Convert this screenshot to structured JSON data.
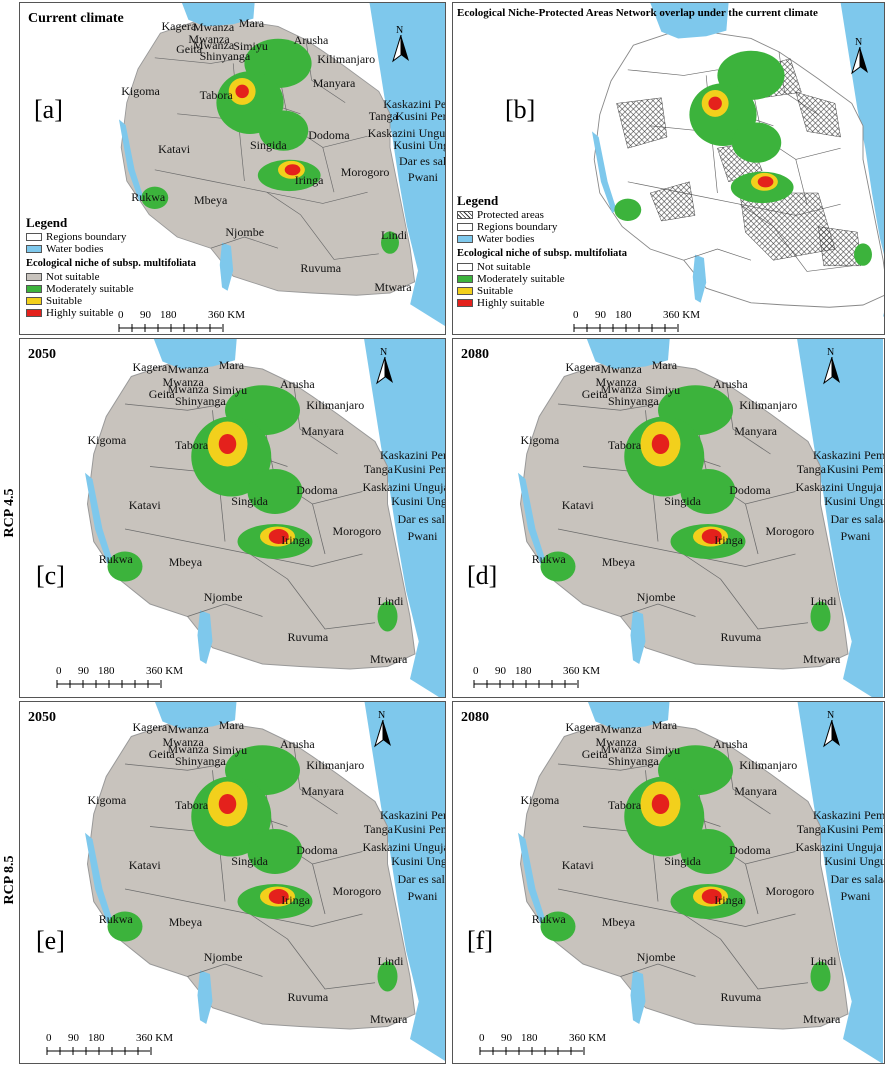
{
  "panels": {
    "a": {
      "title": "Current climate",
      "letter": "[a]"
    },
    "b": {
      "title": "Ecological Niche-Protected Areas Network overlap under the current climate",
      "letter": "[b]"
    },
    "c": {
      "title": "2050",
      "letter": "[c]"
    },
    "d": {
      "title": "2080",
      "letter": "[d]"
    },
    "e": {
      "title": "2050",
      "letter": "[e]"
    },
    "f": {
      "title": "2080",
      "letter": "[f]"
    }
  },
  "side_labels": {
    "rcp45": "RCP 4.5",
    "rcp85": "RCP 8.5"
  },
  "north_label": "N",
  "regions": {
    "kagera": "Kagera",
    "mwanza1": "Mwanza",
    "mwanza2": "Mwanza",
    "mwanza3": "Mwanza",
    "mara": "Mara",
    "geita": "Geita",
    "simiyu": "Simiyu",
    "shinyanga": "Shinyanga",
    "arusha": "Arusha",
    "kilimanjaro": "Kilimanjaro",
    "manyara": "Manyara",
    "kigoma": "Kigoma",
    "tabora": "Tabora",
    "kask_pemba": "Kaskazini Pemba",
    "tanga": "Tanga",
    "kusini_pemba": "Kusini Pemba",
    "dodoma": "Dodoma",
    "kask_unguja": "Kaskazini Unguja",
    "singida": "Singida",
    "kusini_unguja": "Kusini Unguja",
    "katavi": "Katavi",
    "dar": "Dar es salaam",
    "morogoro": "Morogoro",
    "pwani": "Pwani",
    "rukwa": "Rukwa",
    "iringa": "Iringa",
    "mbeya": "Mbeya",
    "njombe": "Njombe",
    "lindi": "Lindi",
    "ruvuma": "Ruvuma",
    "mtwara": "Mtwara"
  },
  "legend_a": {
    "heading": "Legend",
    "boundary": "Regions boundary",
    "water": "Water bodies",
    "niche_heading": "Ecological niche of subsp. multifoliata",
    "classes": [
      "Not suitable",
      "Moderately suitable",
      "Suitable",
      "Highly suitable"
    ]
  },
  "legend_b": {
    "heading": "Legend",
    "protected": "Protected areas",
    "boundary": "Regions boundary",
    "water": "Water bodies",
    "niche_heading": "Ecological niche of subsp. multifoliata",
    "classes": [
      "Not suitable",
      "Moderately suitable",
      "Suitable",
      "Highly suitable"
    ]
  },
  "scale_bar": {
    "ticks": [
      "0",
      "90",
      "180",
      "360 KM"
    ]
  },
  "colors": {
    "not_suitable": "#c8c3bd",
    "not_suitable_b": "#ffffff",
    "moderately_suitable": "#3cb33c",
    "suitable": "#f2d01c",
    "highly_suitable": "#e4211c",
    "water": "#7ec8ec",
    "boundary": "#777777"
  }
}
